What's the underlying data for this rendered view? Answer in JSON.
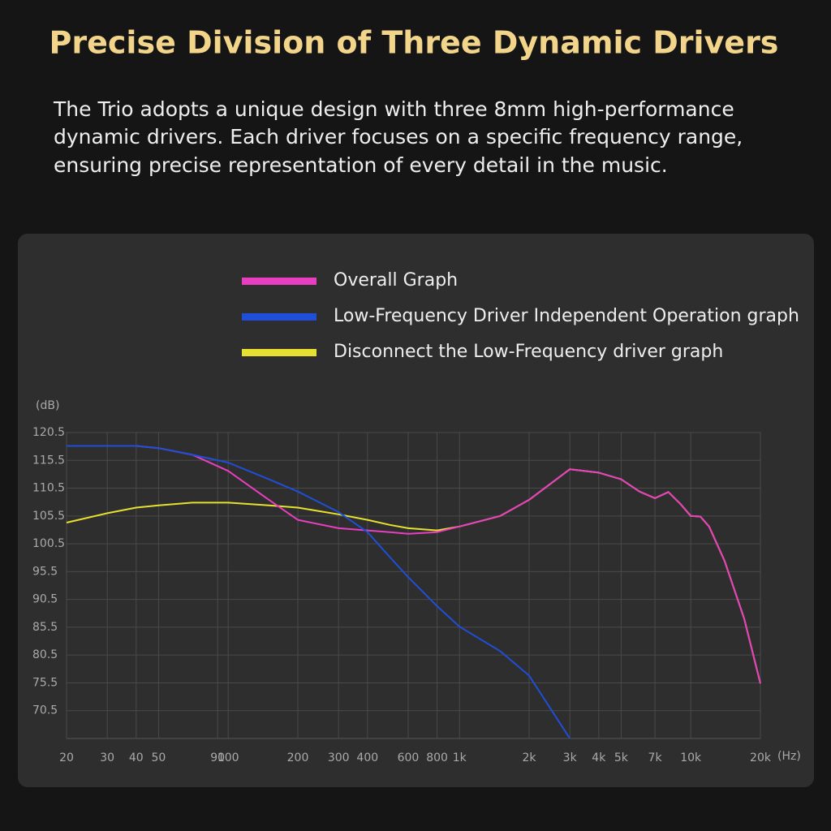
{
  "chart_data": {
    "type": "line",
    "title": "Precise Division of Three Dynamic Drivers",
    "subtitle": [
      "The Trio adopts a unique design with three 8mm high-performance",
      "dynamic drivers. Each driver focuses on a specific frequency range,",
      "ensuring precise representation of every detail in the music."
    ],
    "ylabel": "(dB)",
    "xlabel": "(Hz)",
    "xscale": "log",
    "grid": true,
    "x": [
      20,
      30,
      40,
      50,
      70,
      100,
      150,
      200,
      300,
      400,
      500,
      600,
      800,
      1000,
      1500,
      2000,
      3000,
      4000,
      5000,
      6000,
      7000,
      8000,
      9000,
      10000,
      11000,
      12000,
      14000,
      17000,
      20000
    ],
    "series": [
      {
        "name": "Overall Graph",
        "color": "#e83fc0",
        "values": [
          118.1,
          118.1,
          118.1,
          117.7,
          116.5,
          113.6,
          108.4,
          104.8,
          103.3,
          102.9,
          102.6,
          102.3,
          102.6,
          103.6,
          105.5,
          108.4,
          113.9,
          113.3,
          112.1,
          109.9,
          108.7,
          109.8,
          107.7,
          105.5,
          105.4,
          103.6,
          97.4,
          87.1,
          75.4
        ]
      },
      {
        "name": "Low-Frequency Driver Independent Operation graph",
        "color": "#1f4fd8",
        "values": [
          118.1,
          118.1,
          118.1,
          117.7,
          116.5,
          115.1,
          112.1,
          109.9,
          106.2,
          102.6,
          98.1,
          94.5,
          89.3,
          85.6,
          81.2,
          76.8,
          65.5,
          null,
          null,
          null,
          null,
          null,
          null,
          null,
          null,
          null,
          null,
          null,
          null
        ]
      },
      {
        "name": "Disconnect the Low-Frequency driver graph",
        "color": "#e8e030",
        "values": [
          104.3,
          106,
          107,
          107.4,
          107.9,
          107.9,
          107.4,
          107,
          105.8,
          104.8,
          103.9,
          103.3,
          102.9,
          103.6,
          105.5,
          108.4,
          113.9,
          113.3,
          112.1,
          109.9,
          108.7,
          109.8,
          107.7,
          105.5,
          105.4,
          103.6,
          97.4,
          87.1,
          75.4
        ]
      }
    ],
    "xlim": [
      20,
      20000
    ],
    "xticks": [
      20,
      30,
      40,
      50,
      90,
      100,
      200,
      300,
      400,
      600,
      800,
      {
        "value": 1000,
        "label": "1k"
      },
      {
        "value": 2000,
        "label": "2k"
      },
      {
        "value": 3000,
        "label": "3k"
      },
      {
        "value": 4000,
        "label": "4k"
      },
      {
        "value": 5000,
        "label": "5k"
      },
      {
        "value": 7000,
        "label": "7k"
      },
      {
        "value": 10000,
        "label": "10k"
      },
      {
        "value": 20000,
        "label": "20k"
      }
    ],
    "ylim": [
      65.5,
      120.5
    ],
    "yticks": [
      120.5,
      115.5,
      110.5,
      105.5,
      100.5,
      95.5,
      90.5,
      85.5,
      80.5,
      75.5,
      70.5
    ]
  }
}
